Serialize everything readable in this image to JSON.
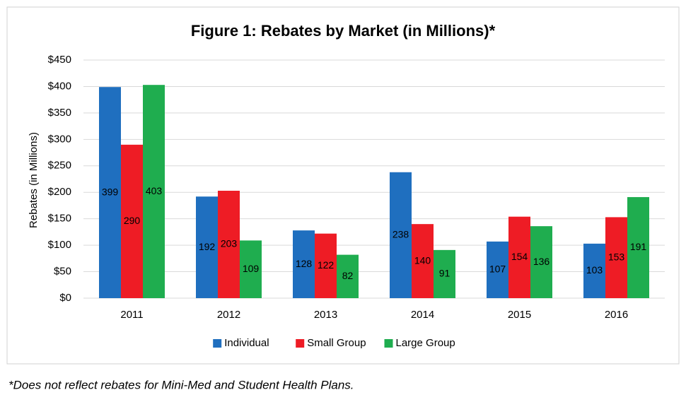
{
  "chart_data": {
    "type": "bar",
    "title": "Figure 1: Rebates by Market (in Millions)*",
    "y_label": "Rebates (in Millions)",
    "categories": [
      "2011",
      "2012",
      "2013",
      "2014",
      "2015",
      "2016"
    ],
    "series": [
      {
        "name": "Individual",
        "color": "#1f6fbf",
        "values": [
          399,
          192,
          128,
          238,
          107,
          103
        ]
      },
      {
        "name": "Small Group",
        "color": "#ee1c25",
        "values": [
          290,
          203,
          122,
          140,
          154,
          153
        ]
      },
      {
        "name": "Large Group",
        "color": "#1fad4f",
        "values": [
          403,
          109,
          82,
          91,
          136,
          191
        ]
      }
    ],
    "ylim": [
      0,
      450
    ],
    "yticks": [
      {
        "value": 0,
        "label": "$0"
      },
      {
        "value": 50,
        "label": "$50"
      },
      {
        "value": 100,
        "label": "$100"
      },
      {
        "value": 150,
        "label": "$150"
      },
      {
        "value": 200,
        "label": "$200"
      },
      {
        "value": 250,
        "label": "$250"
      },
      {
        "value": 300,
        "label": "$300"
      },
      {
        "value": 350,
        "label": "$350"
      },
      {
        "value": 400,
        "label": "$400"
      },
      {
        "value": 450,
        "label": "$450"
      }
    ],
    "grid": true,
    "legend": "bottom",
    "footnote": "*Does not reflect rebates for Mini-Med and Student Health Plans."
  }
}
